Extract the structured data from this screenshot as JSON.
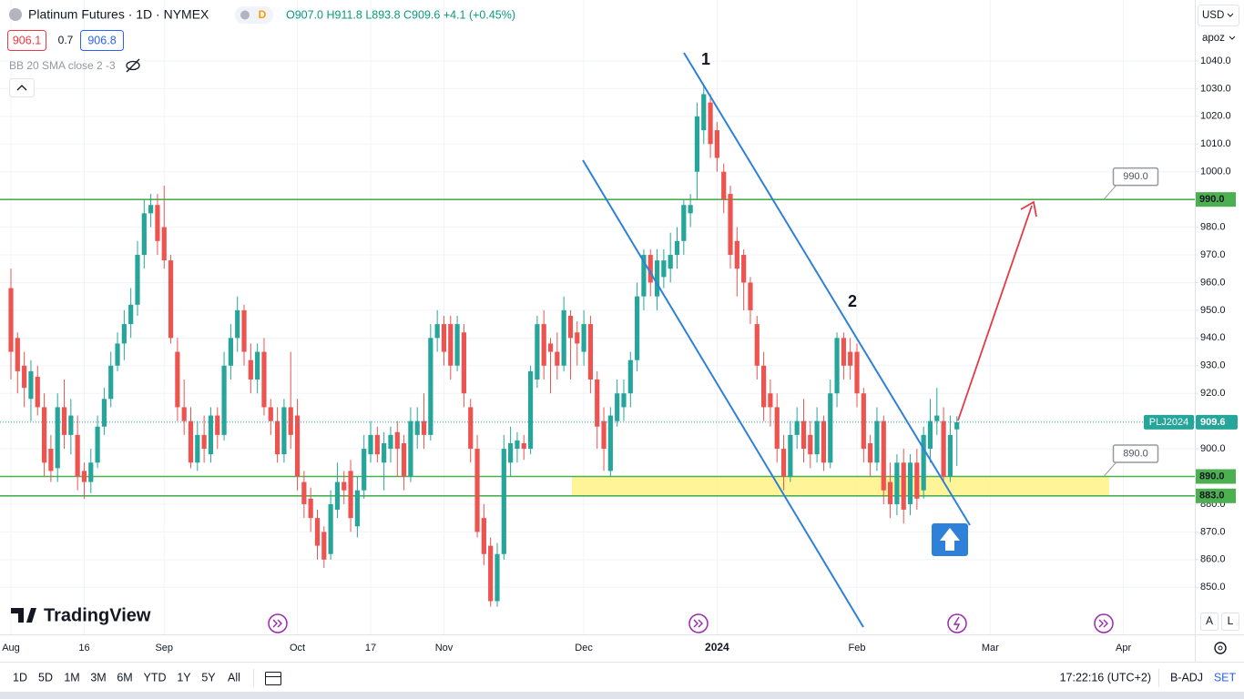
{
  "header": {
    "symbol": "Platinum Futures · 1D · NYMEX",
    "badge": "D",
    "ohlc": "O907.0 H911.8 L893.8 C909.6 +4.1 (+0.45%)",
    "sell": "906.1",
    "spread": "0.7",
    "buy": "906.8",
    "indicator": "BB 20 SMA close 2 -3"
  },
  "logo": "TradingView",
  "toolbar": {
    "ranges": [
      "1D",
      "5D",
      "1M",
      "3M",
      "6M",
      "YTD",
      "1Y",
      "5Y",
      "All"
    ],
    "time": "17:22:16 (UTC+2)",
    "adjust": "B-ADJ",
    "settlement": "SET",
    "currency": "USD",
    "unit": "apoz",
    "auto": "A",
    "log": "L"
  },
  "chart_data": {
    "type": "candlestick",
    "categories": [
      "Aug",
      null,
      null,
      null,
      null,
      null,
      null,
      null,
      null,
      null,
      null,
      "16",
      null,
      null,
      null,
      null,
      null,
      null,
      null,
      null,
      null,
      null,
      null,
      "Sep",
      null,
      null,
      null,
      null,
      null,
      null,
      null,
      null,
      null,
      null,
      null,
      null,
      null,
      null,
      null,
      null,
      null,
      null,
      null,
      "Oct",
      null,
      null,
      null,
      null,
      null,
      null,
      null,
      null,
      null,
      null,
      "17",
      null,
      null,
      null,
      null,
      null,
      null,
      null,
      null,
      null,
      null,
      "Nov",
      null,
      null,
      null,
      null,
      null,
      null,
      null,
      null,
      null,
      null,
      null,
      null,
      null,
      null,
      null,
      null,
      null,
      null,
      null,
      null,
      "Dec",
      null,
      null,
      null,
      null,
      null,
      null,
      null,
      null,
      null,
      null,
      null,
      null,
      null,
      null,
      null,
      null,
      null,
      null,
      null,
      "2024",
      null,
      null,
      null,
      null,
      null,
      null,
      null,
      null,
      null,
      null,
      null,
      null,
      null,
      null,
      null,
      null,
      null,
      null,
      null,
      null,
      "Feb",
      null,
      null,
      null,
      null,
      null,
      null,
      null,
      null,
      null,
      null,
      null,
      null,
      null,
      null,
      null,
      null,
      null,
      null,
      null,
      "Mar",
      null,
      null,
      null,
      null,
      null,
      null,
      null,
      null,
      null,
      null,
      null,
      null,
      null,
      null,
      null,
      null,
      null,
      null,
      null,
      "Apr"
    ],
    "open": [
      958,
      940,
      930,
      918,
      926,
      915,
      900,
      893,
      915,
      905,
      905,
      892,
      888,
      895,
      908,
      918,
      930,
      938,
      945,
      952,
      970,
      985,
      988,
      980,
      968,
      935,
      915,
      910,
      895,
      905,
      898,
      912,
      905,
      930,
      940,
      950,
      932,
      925,
      935,
      915,
      910,
      898,
      915,
      912,
      888,
      882,
      875,
      870,
      862,
      878,
      888,
      892,
      872,
      885,
      898,
      905,
      895,
      900,
      906,
      902,
      890,
      905,
      910,
      905,
      940,
      945,
      945,
      930,
      942,
      915,
      900,
      875,
      865,
      845,
      862,
      895,
      900,
      902,
      900,
      925,
      945,
      938,
      935,
      930,
      948,
      942,
      935,
      945,
      925,
      910,
      892,
      910,
      915,
      920,
      932,
      955,
      970,
      955,
      962,
      965,
      970,
      975,
      985,
      1000,
      1015,
      1025,
      1015,
      1000,
      992,
      975,
      970,
      960,
      945,
      930,
      920,
      915,
      900,
      890,
      905,
      910,
      905,
      898,
      910,
      895,
      920,
      940,
      935,
      935,
      920,
      902,
      895,
      910,
      888,
      880,
      895,
      880,
      895,
      885,
      900,
      910,
      910,
      890,
      907.0,
      null,
      null,
      null,
      null,
      null,
      null,
      null,
      null,
      null,
      null,
      null,
      null,
      null,
      null,
      null,
      null,
      null,
      null,
      null,
      null,
      null,
      null,
      null,
      null,
      null
    ],
    "high": [
      965,
      942,
      935,
      932,
      930,
      920,
      905,
      920,
      925,
      918,
      912,
      895,
      900,
      912,
      922,
      935,
      942,
      950,
      958,
      975,
      990,
      992,
      992,
      995,
      970,
      940,
      925,
      915,
      910,
      912,
      915,
      915,
      935,
      945,
      955,
      952,
      938,
      938,
      940,
      918,
      915,
      918,
      935,
      918,
      892,
      886,
      878,
      872,
      885,
      895,
      892,
      896,
      890,
      905,
      910,
      908,
      906,
      908,
      910,
      905,
      915,
      915,
      920,
      945,
      950,
      948,
      948,
      948,
      945,
      918,
      905,
      880,
      868,
      866,
      905,
      908,
      906,
      905,
      930,
      948,
      950,
      940,
      942,
      955,
      950,
      946,
      950,
      948,
      928,
      915,
      915,
      925,
      925,
      935,
      960,
      972,
      972,
      972,
      972,
      978,
      980,
      990,
      992,
      1025,
      1031,
      1028,
      1018,
      1003,
      995,
      980,
      972,
      962,
      948,
      935,
      925,
      920,
      905,
      910,
      915,
      918,
      910,
      915,
      912,
      925,
      942,
      942,
      940,
      938,
      922,
      905,
      915,
      912,
      895,
      898,
      900,
      898,
      900,
      908,
      918,
      922,
      915,
      912,
      911.8,
      null,
      null,
      null,
      null,
      null,
      null,
      null,
      null,
      null,
      null,
      null,
      null,
      null,
      null,
      null,
      null,
      null,
      null,
      null,
      null,
      null,
      null,
      null,
      null,
      null
    ],
    "low": [
      925,
      920,
      915,
      910,
      912,
      890,
      888,
      888,
      900,
      898,
      885,
      882,
      884,
      893,
      905,
      915,
      928,
      932,
      940,
      948,
      965,
      980,
      970,
      965,
      938,
      910,
      905,
      893,
      892,
      895,
      895,
      900,
      903,
      925,
      935,
      930,
      920,
      920,
      912,
      905,
      895,
      895,
      900,
      885,
      875,
      870,
      860,
      857,
      860,
      875,
      880,
      870,
      868,
      882,
      895,
      895,
      885,
      895,
      890,
      885,
      888,
      900,
      900,
      903,
      935,
      930,
      925,
      928,
      915,
      895,
      868,
      858,
      843,
      843,
      860,
      890,
      895,
      896,
      898,
      922,
      925,
      920,
      925,
      928,
      925,
      930,
      930,
      920,
      900,
      892,
      890,
      908,
      910,
      915,
      928,
      950,
      955,
      950,
      958,
      960,
      965,
      970,
      980,
      990,
      1010,
      1005,
      1000,
      985,
      965,
      955,
      950,
      945,
      925,
      910,
      908,
      895,
      885,
      888,
      900,
      895,
      893,
      895,
      892,
      893,
      915,
      925,
      925,
      915,
      895,
      890,
      892,
      880,
      875,
      876,
      873,
      876,
      878,
      882,
      895,
      905,
      888,
      888,
      893.8,
      null,
      null,
      null,
      null,
      null,
      null,
      null,
      null,
      null,
      null,
      null,
      null,
      null,
      null,
      null,
      null,
      null,
      null,
      null,
      null,
      null,
      null,
      null,
      null,
      null
    ],
    "close": [
      935,
      928,
      922,
      928,
      915,
      895,
      892,
      915,
      905,
      912,
      890,
      888,
      895,
      908,
      918,
      930,
      938,
      945,
      952,
      970,
      985,
      988,
      975,
      968,
      940,
      915,
      910,
      895,
      905,
      900,
      912,
      905,
      930,
      940,
      950,
      935,
      925,
      935,
      915,
      910,
      898,
      915,
      905,
      890,
      880,
      875,
      865,
      860,
      880,
      888,
      885,
      875,
      885,
      900,
      905,
      898,
      902,
      905,
      900,
      890,
      910,
      910,
      905,
      940,
      945,
      935,
      930,
      945,
      920,
      900,
      870,
      862,
      845,
      862,
      900,
      902,
      903,
      900,
      928,
      945,
      930,
      935,
      930,
      950,
      940,
      938,
      945,
      925,
      908,
      900,
      912,
      920,
      920,
      932,
      955,
      970,
      960,
      968,
      968,
      970,
      975,
      988,
      988,
      1020,
      1028,
      1010,
      1005,
      990,
      970,
      965,
      960,
      950,
      930,
      915,
      915,
      900,
      890,
      905,
      910,
      900,
      898,
      910,
      895,
      920,
      940,
      930,
      930,
      920,
      900,
      895,
      910,
      885,
      880,
      895,
      878,
      895,
      882,
      905,
      910,
      912,
      890,
      905,
      909.6,
      null,
      null,
      null,
      null,
      null,
      null,
      null,
      null,
      null,
      null,
      null,
      null,
      null,
      null,
      null,
      null,
      null,
      null,
      null,
      null,
      null,
      null,
      null,
      null,
      null
    ],
    "up_color": "#26a69a",
    "down_color": "#ef5350",
    "ylim": [
      833,
      1062
    ],
    "yticks": [
      {
        "value": 850,
        "label": "850.0"
      },
      {
        "value": 860,
        "label": "860.0"
      },
      {
        "value": 870,
        "label": "870.0"
      },
      {
        "value": 880,
        "label": "880.0"
      },
      {
        "value": 890,
        "label": "890.0"
      },
      {
        "value": 900,
        "label": "900.0"
      },
      {
        "value": 910,
        "label": "910.0"
      },
      {
        "value": 920,
        "label": "920.0"
      },
      {
        "value": 930,
        "label": "930.0"
      },
      {
        "value": 940,
        "label": "940.0"
      },
      {
        "value": 950,
        "label": "950.0"
      },
      {
        "value": 960,
        "label": "960.0"
      },
      {
        "value": 970,
        "label": "970.0"
      },
      {
        "value": 980,
        "label": "980.0"
      },
      {
        "value": 990,
        "label": "990.0"
      },
      {
        "value": 1000,
        "label": "1000.0"
      },
      {
        "value": 1010,
        "label": "1010.0"
      },
      {
        "value": 1020,
        "label": "1020.0"
      },
      {
        "value": 1030,
        "label": "1030.0"
      },
      {
        "value": 1040,
        "label": "1040.0"
      }
    ],
    "grid": true,
    "levels": [
      {
        "value": 990,
        "label": "990.0"
      },
      {
        "value": 890,
        "label": "890.0"
      },
      {
        "value": 883,
        "label": "883.0"
      }
    ],
    "level_color": "#4caf50",
    "last_price_symbol": "PLJ2024",
    "annotations": [
      "1",
      "2"
    ]
  }
}
